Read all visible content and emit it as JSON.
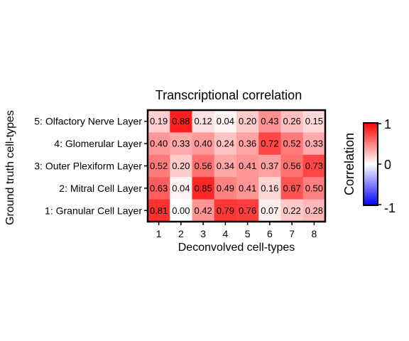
{
  "chart_data": {
    "type": "heatmap",
    "title": "Transcriptional correlation",
    "xlabel": "Deconvolved cell-types",
    "ylabel": "Ground truth cell-types",
    "x_categories": [
      "1",
      "2",
      "3",
      "4",
      "5",
      "6",
      "7",
      "8"
    ],
    "y_categories": [
      "5: Olfactory Nerve Layer",
      "4: Glomerular Layer",
      "3: Outer Plexiform Layer",
      "2: Mitral Cell Layer",
      "1: Granular Cell Layer"
    ],
    "values": [
      [
        0.19,
        0.88,
        0.12,
        0.04,
        0.2,
        0.43,
        0.26,
        0.15
      ],
      [
        0.4,
        0.33,
        0.4,
        0.24,
        0.36,
        0.72,
        0.52,
        0.33
      ],
      [
        0.52,
        0.2,
        0.56,
        0.34,
        0.41,
        0.37,
        0.56,
        0.73
      ],
      [
        0.63,
        0.04,
        0.85,
        0.49,
        0.41,
        0.16,
        0.67,
        0.5
      ],
      [
        0.81,
        0.0,
        0.42,
        0.79,
        0.76,
        0.07,
        0.22,
        0.28
      ]
    ],
    "value_labels": [
      [
        "0.19",
        "0.88",
        "0.12",
        "0.04",
        "0.20",
        "0.43",
        "0.26",
        "0.15"
      ],
      [
        "0.40",
        "0.33",
        "0.40",
        "0.24",
        "0.36",
        "0.72",
        "0.52",
        "0.33"
      ],
      [
        "0.52",
        "0.20",
        "0.56",
        "0.34",
        "0.41",
        "0.37",
        "0.56",
        "0.73"
      ],
      [
        "0.63",
        "0.04",
        "0.85",
        "0.49",
        "0.41",
        "0.16",
        "0.67",
        "0.50"
      ],
      [
        "0.81",
        "0.00",
        "0.42",
        "0.79",
        "0.76",
        "0.07",
        "0.22",
        "0.28"
      ]
    ],
    "colorbar": {
      "label": "Correlation",
      "range": [
        -1,
        1
      ],
      "tick_values": [
        1,
        0,
        -1
      ],
      "tick_labels": [
        "1",
        "0",
        "-1"
      ],
      "low_color": "#0000ff",
      "mid_color": "#ffffff",
      "high_color": "#ff0000"
    },
    "grid": false,
    "legend_position": "right"
  }
}
